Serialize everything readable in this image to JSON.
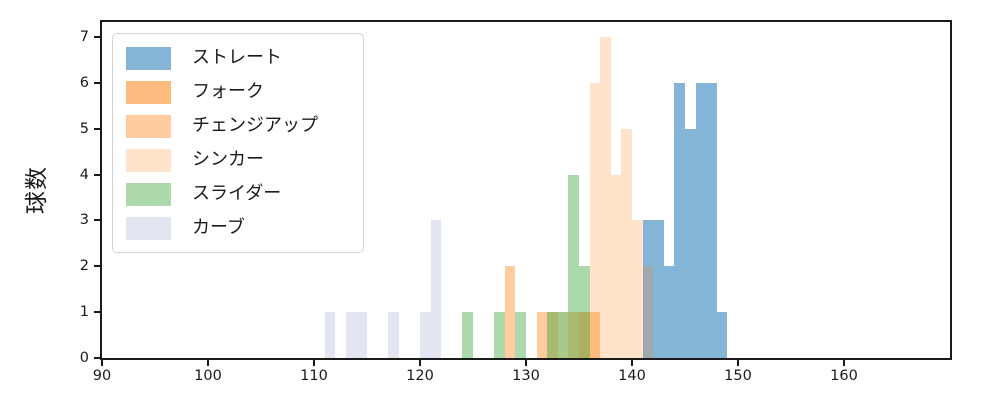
{
  "chart_data": {
    "type": "bar",
    "subtype": "overlapping-histogram",
    "title": "",
    "xlabel": "",
    "ylabel": "球数",
    "xlim": [
      90,
      170
    ],
    "ylim": [
      0,
      7.33
    ],
    "bin_width": 1,
    "x_ticks": [
      90,
      100,
      110,
      120,
      130,
      140,
      150,
      160
    ],
    "y_ticks": [
      0,
      1,
      2,
      3,
      4,
      5,
      6,
      7
    ],
    "grid": false,
    "legend_position": "upper-left",
    "series": [
      {
        "name": "ストレート",
        "color": "rgba(31,119,180,0.55)",
        "bins": [
          [
            141,
            3
          ],
          [
            142,
            3
          ],
          [
            143,
            2
          ],
          [
            144,
            6
          ],
          [
            145,
            5
          ],
          [
            146,
            6
          ],
          [
            147,
            6
          ],
          [
            148,
            1
          ]
        ]
      },
      {
        "name": "フォーク",
        "color": "rgba(255,127,14,0.53)",
        "bins": [
          [
            135,
            1
          ]
        ]
      },
      {
        "name": "チェンジアップ",
        "color": "rgba(255,127,14,0.40)",
        "bins": [
          [
            128,
            2
          ],
          [
            131,
            1
          ],
          [
            132,
            1
          ],
          [
            134,
            1
          ],
          [
            136,
            1
          ]
        ]
      },
      {
        "name": "シンカー",
        "color": "rgba(255,127,14,0.22)",
        "bins": [
          [
            133,
            1
          ],
          [
            136,
            6
          ],
          [
            137,
            7
          ],
          [
            138,
            4
          ],
          [
            139,
            5
          ],
          [
            140,
            3
          ],
          [
            141,
            2
          ]
        ]
      },
      {
        "name": "スライダー",
        "color": "rgba(44,160,44,0.40)",
        "bins": [
          [
            124,
            1
          ],
          [
            127,
            1
          ],
          [
            129,
            1
          ],
          [
            132,
            1
          ],
          [
            133,
            1
          ],
          [
            134,
            4
          ],
          [
            135,
            2
          ]
        ]
      },
      {
        "name": "カーブ",
        "color": "rgba(128,137,187,0.22)",
        "bins": [
          [
            111,
            1
          ],
          [
            113,
            1
          ],
          [
            114,
            1
          ],
          [
            117,
            1
          ],
          [
            120,
            1
          ],
          [
            121,
            3
          ]
        ]
      }
    ],
    "axis_color": "#1a1a1a",
    "legend_border_color": "#d2d2d2"
  }
}
